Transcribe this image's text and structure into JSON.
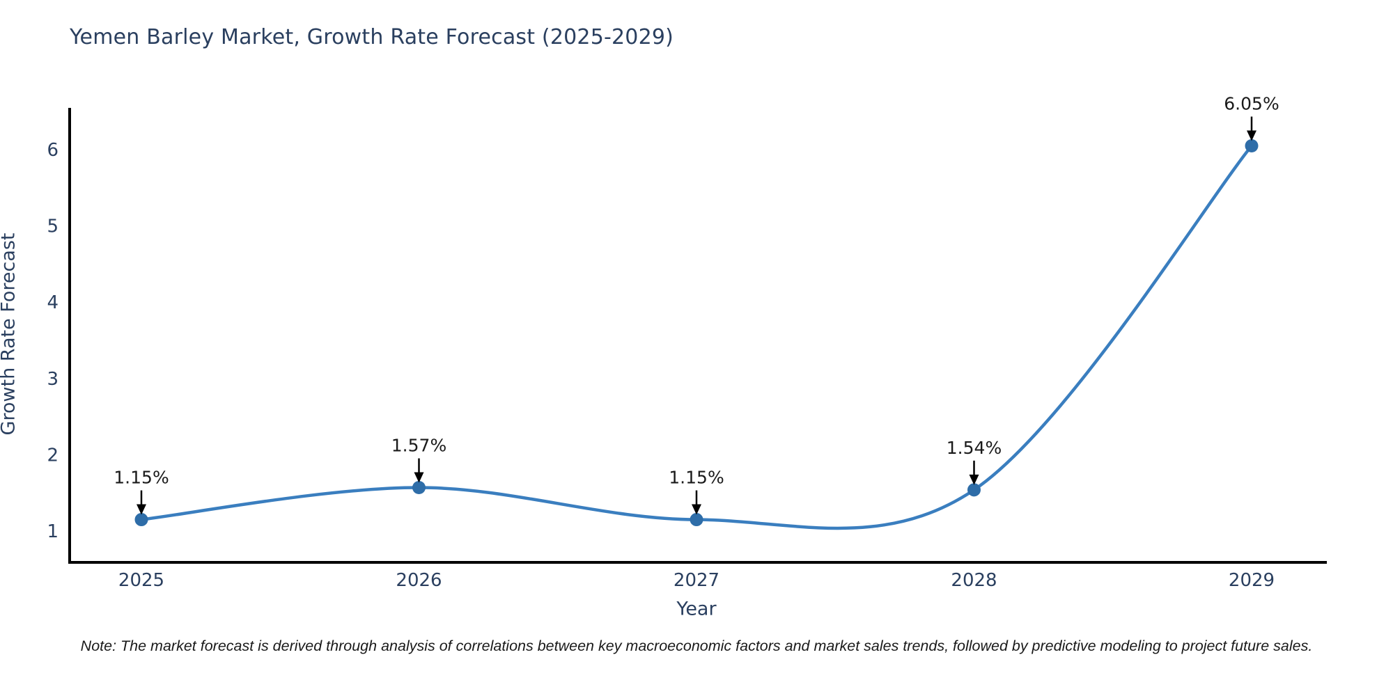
{
  "chart_data": {
    "type": "line",
    "title": "Yemen Barley Market, Growth Rate Forecast (2025-2029)",
    "xlabel": "Year",
    "ylabel": "Growth Rate Forecast",
    "categories": [
      "2025",
      "2026",
      "2027",
      "2028",
      "2029"
    ],
    "series": [
      {
        "name": "Growth Rate Forecast",
        "values": [
          1.15,
          1.57,
          1.15,
          1.54,
          6.05
        ]
      }
    ],
    "point_labels": [
      "1.15%",
      "1.57%",
      "1.15%",
      "1.54%",
      "6.05%"
    ],
    "y_ticks": [
      1,
      2,
      3,
      4,
      5,
      6
    ],
    "ylim": [
      0.59,
      6.53
    ],
    "line_shape": "spline",
    "grid": false,
    "legend_position": "none",
    "colors": {
      "line": "#3a7ebf",
      "marker": "#2e6da8",
      "axis": "#000000",
      "tick_label": "#2a3f5f",
      "title": "#2a3f5f",
      "annotation_text": "#1a1a1a",
      "arrow": "#000000",
      "background": "#ffffff"
    }
  },
  "note": "Note: The market forecast is derived through analysis of correlations between key macroeconomic factors and market sales trends, followed by predictive modeling to project future sales."
}
